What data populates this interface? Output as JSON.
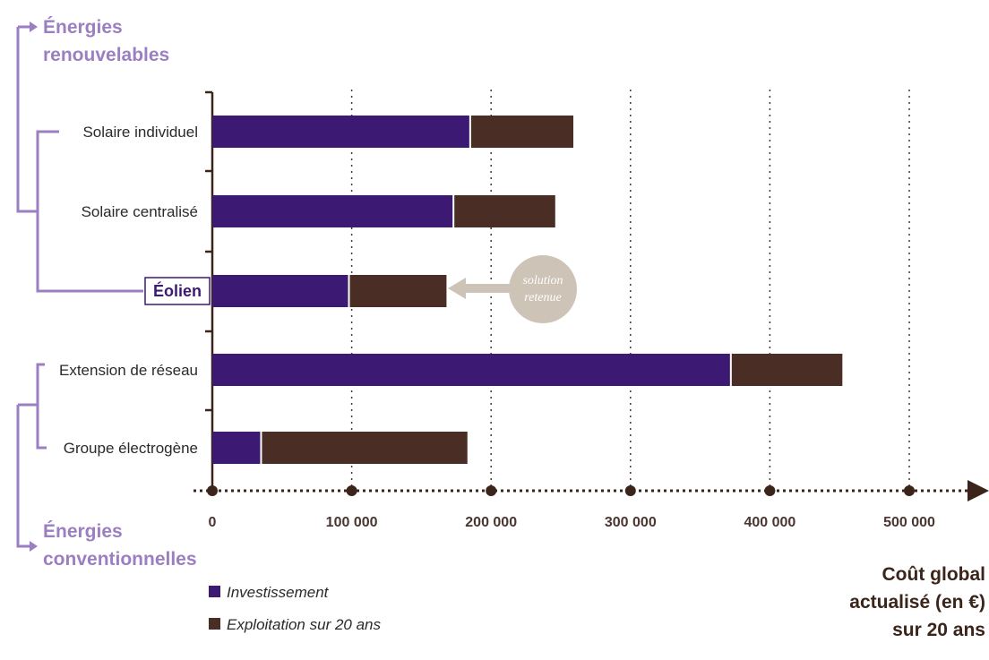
{
  "chart_data": {
    "type": "bar",
    "orientation": "horizontal",
    "stacked": true,
    "categories": [
      "Solaire individuel",
      "Solaire centralisé",
      "Éolien",
      "Extension de réseau",
      "Groupe électrogène"
    ],
    "highlighted_category": "Éolien",
    "series": [
      {
        "name": "Investissement",
        "color": "#3c1a73",
        "values": [
          185000,
          173000,
          98000,
          372000,
          35000
        ]
      },
      {
        "name": "Exploitation sur 20 ans",
        "color": "#4a2d25",
        "values": [
          74000,
          73000,
          70000,
          80000,
          148000
        ]
      }
    ],
    "xlim": [
      0,
      550000
    ],
    "x_ticks": [
      {
        "value": 0,
        "label": "0"
      },
      {
        "value": 100000,
        "label": "100 000"
      },
      {
        "value": 200000,
        "label": "200 000"
      },
      {
        "value": 300000,
        "label": "300 000"
      },
      {
        "value": 400000,
        "label": "400 000"
      },
      {
        "value": 500000,
        "label": "500 000"
      }
    ],
    "xlabel": [
      "Coût global",
      "actualisé (en €)",
      "sur 20 ans"
    ],
    "groups": [
      {
        "label": [
          "Énergies",
          "renouvelables"
        ],
        "categories": [
          "Solaire individuel",
          "Solaire centralisé",
          "Éolien"
        ]
      },
      {
        "label": [
          "Énergies",
          "conventionnelles"
        ],
        "categories": [
          "Extension de réseau",
          "Groupe électrogène"
        ]
      }
    ],
    "annotation": {
      "lines": [
        "solution",
        "retenue"
      ],
      "target": "Éolien"
    },
    "legend": {
      "placement": "bottom-left",
      "entries": [
        "Investissement",
        "Exploitation sur 20 ans"
      ]
    },
    "grid": "vertical dotted",
    "colors": {
      "group_accent": "#9b7fc2",
      "axis": "#3b2419",
      "annotation_bubble": "#cdc3b6"
    }
  }
}
